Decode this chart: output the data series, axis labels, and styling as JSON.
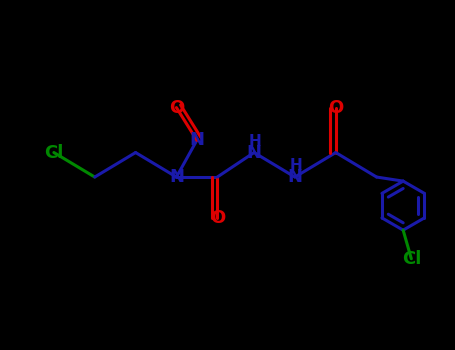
{
  "background": "#000000",
  "bond_color": "#1a1aaa",
  "O_color": "#dd0000",
  "N_color": "#1a1aaa",
  "Cl_color": "#008800",
  "C_color": "#1a1aaa",
  "lw": 2.2,
  "fontsize": 13,
  "figsize": [
    4.55,
    3.5
  ],
  "dpi": 100,
  "xlim": [
    -1.0,
    9.5
  ],
  "ylim": [
    -1.0,
    7.5
  ]
}
